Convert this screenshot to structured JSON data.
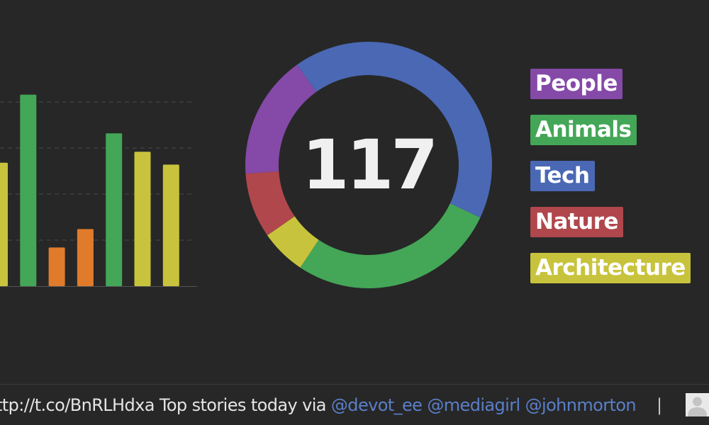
{
  "chart_data": [
    {
      "type": "bar",
      "categories": [
        "",
        "",
        "",
        "",
        "",
        "",
        ""
      ],
      "values": [
        6.7,
        10.4,
        2.1,
        3.1,
        8.3,
        7.3,
        6.6
      ],
      "colors": [
        "#c8c33c",
        "#44a657",
        "#e07b2b",
        "#e07b2b",
        "#44a657",
        "#c8c33c",
        "#c8c33c"
      ],
      "ylim": [
        0,
        12
      ],
      "grid": true,
      "gridlines": [
        2.5,
        5,
        7.5,
        10
      ]
    },
    {
      "type": "pie",
      "total": "117",
      "categories": [
        "Tech",
        "Animals",
        "Architecture",
        "Nature",
        "People"
      ],
      "values": [
        49,
        32,
        7,
        10,
        19
      ],
      "colors": [
        "#4a68b4",
        "#44a657",
        "#c8c33c",
        "#b0474d",
        "#8549a8"
      ]
    }
  ],
  "legend": {
    "items": [
      {
        "label": "People",
        "color": "#8549a8"
      },
      {
        "label": "Animals",
        "color": "#44a657"
      },
      {
        "label": "Tech",
        "color": "#4a68b4"
      },
      {
        "label": "Nature",
        "color": "#b0474d"
      },
      {
        "label": "Architecture",
        "color": "#c8c33c"
      }
    ]
  },
  "ticker": {
    "text": "ttp://t.co/BnRLHdxa Top stories today via ",
    "mentions": [
      "@devot_ee",
      "@mediagirl",
      "@johnmorton"
    ],
    "separator": "|"
  },
  "avatar": {
    "icon": "user-silhouette-icon"
  }
}
